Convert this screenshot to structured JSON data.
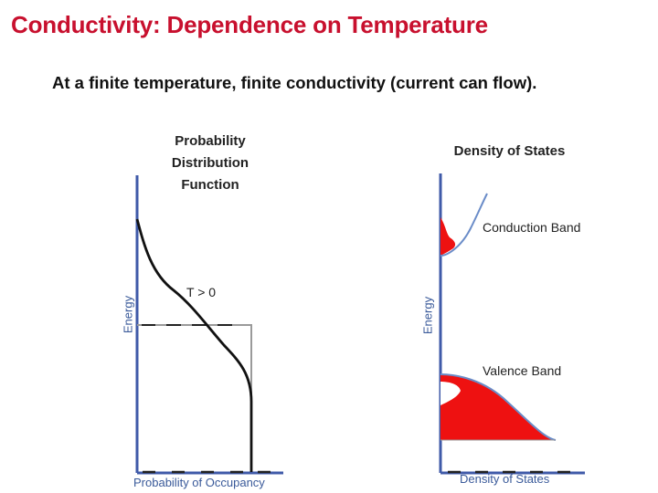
{
  "title": "Conductivity: Dependence on Temperature",
  "subtitle": "At a finite temperature, finite conductivity (current can flow).",
  "left_panel": {
    "title_lines": [
      "Probability",
      "Distribution",
      "Function"
    ],
    "curve_label": "T > 0",
    "y_axis_label": "Energy",
    "x_axis_label": "Probability of Occupancy"
  },
  "right_panel": {
    "title": "Density of States",
    "conduction_label": "Conduction Band",
    "valence_label": "Valence Band",
    "y_axis_label": "Energy",
    "x_axis_label": "Density of States"
  },
  "colors": {
    "title": "#c8102e",
    "axis": "#3f5aa8",
    "fill": "#ee1111",
    "band_curve": "#6a8cc8"
  }
}
